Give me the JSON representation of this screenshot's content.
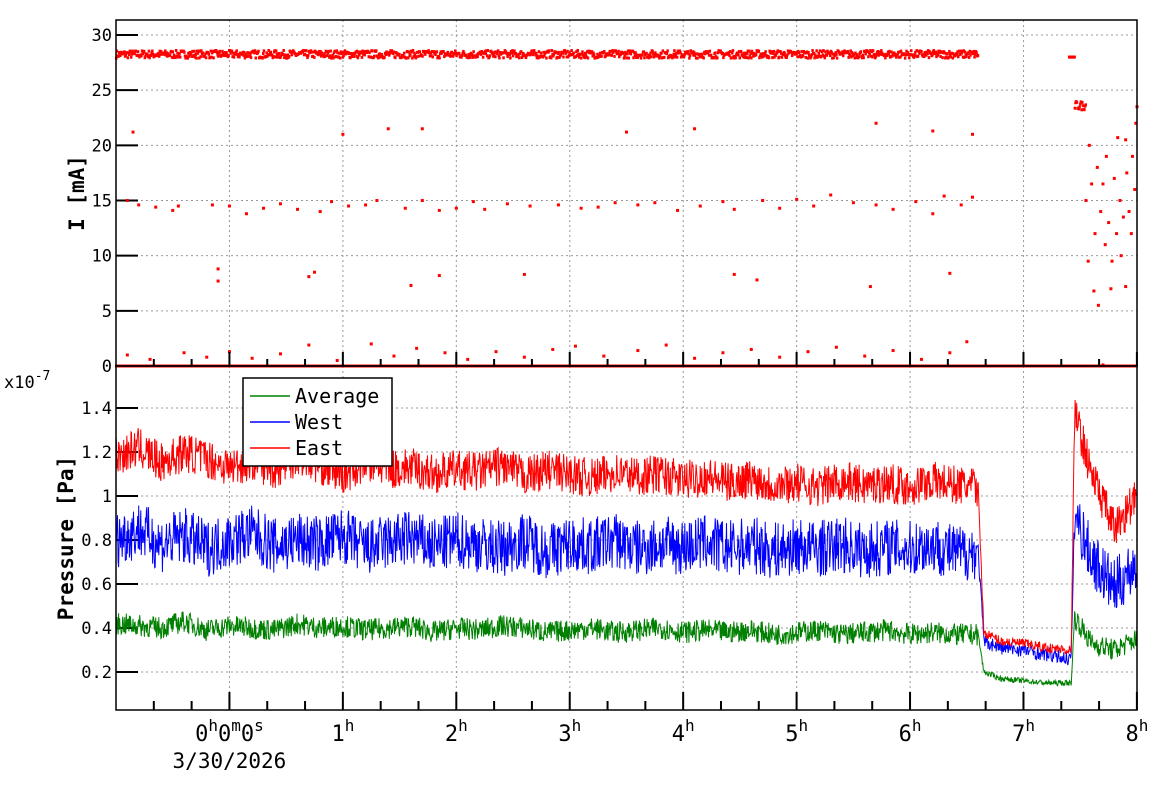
{
  "chart_data": [
    {
      "type": "scatter",
      "ylabel": "I [mA]",
      "ylim": [
        0,
        30
      ],
      "yticks": [
        "0",
        "5",
        "10",
        "15",
        "20",
        "25",
        "30"
      ],
      "grid": true,
      "color": "#ff0000",
      "bands": [
        {
          "x0": -1,
          "x1": 6.6,
          "y0": 27.9,
          "y1": 28.6
        },
        {
          "x0": 7.4,
          "x1": 7.45,
          "y0": 28,
          "y1": 28
        },
        {
          "x0": 7.45,
          "x1": 7.55,
          "y0": 23.2,
          "y1": 24
        },
        {
          "x0": -1,
          "x1": 8,
          "y0": 0,
          "y1": 0
        }
      ],
      "points": [
        [
          -0.85,
          21.2
        ],
        [
          1,
          21
        ],
        [
          1.4,
          21.5
        ],
        [
          1.7,
          21.5
        ],
        [
          3.5,
          21.2
        ],
        [
          4.1,
          21.5
        ],
        [
          5.7,
          22
        ],
        [
          6.2,
          21.3
        ],
        [
          6.55,
          21
        ],
        [
          -0.1,
          8.8
        ],
        [
          -0.1,
          7.7
        ],
        [
          0.75,
          8.5
        ],
        [
          1.85,
          8.2
        ],
        [
          2.6,
          8.3
        ],
        [
          4.45,
          8.3
        ],
        [
          4.65,
          7.8
        ],
        [
          5.65,
          7.2
        ],
        [
          6.35,
          8.4
        ],
        [
          1.6,
          7.3
        ],
        [
          0.7,
          8.1
        ],
        [
          -0.9,
          15
        ],
        [
          -0.8,
          14.6
        ],
        [
          -0.65,
          14.4
        ],
        [
          -0.5,
          14.1
        ],
        [
          -0.45,
          14.5
        ],
        [
          -0.15,
          14.6
        ],
        [
          0,
          14.5
        ],
        [
          0.15,
          13.8
        ],
        [
          0.3,
          14.3
        ],
        [
          0.45,
          14.7
        ],
        [
          0.6,
          14.2
        ],
        [
          0.8,
          14
        ],
        [
          0.9,
          14.9
        ],
        [
          1.05,
          14.5
        ],
        [
          1.2,
          14.6
        ],
        [
          1.3,
          15
        ],
        [
          1.55,
          14.3
        ],
        [
          1.7,
          15
        ],
        [
          1.85,
          14.1
        ],
        [
          2,
          14.3
        ],
        [
          2.15,
          14.9
        ],
        [
          2.25,
          14.2
        ],
        [
          2.45,
          14.7
        ],
        [
          2.65,
          14.5
        ],
        [
          2.9,
          14.6
        ],
        [
          3.1,
          14.3
        ],
        [
          3.25,
          14.4
        ],
        [
          3.4,
          14.8
        ],
        [
          3.6,
          14.6
        ],
        [
          3.75,
          14.8
        ],
        [
          3.95,
          14.1
        ],
        [
          4.15,
          14.5
        ],
        [
          4.35,
          14.9
        ],
        [
          4.45,
          14.2
        ],
        [
          4.7,
          15
        ],
        [
          4.85,
          14.3
        ],
        [
          5,
          15.1
        ],
        [
          5.15,
          14.5
        ],
        [
          5.3,
          15.5
        ],
        [
          5.5,
          14.8
        ],
        [
          5.7,
          14.6
        ],
        [
          5.85,
          14.2
        ],
        [
          6.05,
          14.9
        ],
        [
          6.2,
          13.8
        ],
        [
          6.3,
          15.4
        ],
        [
          6.45,
          14.6
        ],
        [
          6.55,
          15.3
        ],
        [
          -0.9,
          1
        ],
        [
          -0.7,
          0.6
        ],
        [
          -0.4,
          1.2
        ],
        [
          -0.2,
          0.8
        ],
        [
          0,
          1.3
        ],
        [
          0.2,
          0.7
        ],
        [
          0.45,
          1.1
        ],
        [
          0.7,
          1.9
        ],
        [
          0.95,
          0.5
        ],
        [
          1.25,
          2
        ],
        [
          1.45,
          0.9
        ],
        [
          1.65,
          1.6
        ],
        [
          1.9,
          1.2
        ],
        [
          2.1,
          0.6
        ],
        [
          2.35,
          1.3
        ],
        [
          2.6,
          0.8
        ],
        [
          2.85,
          1.5
        ],
        [
          3.05,
          1.8
        ],
        [
          3.3,
          0.9
        ],
        [
          3.6,
          1.4
        ],
        [
          3.85,
          1.9
        ],
        [
          4.1,
          0.7
        ],
        [
          4.35,
          1.2
        ],
        [
          4.6,
          1.5
        ],
        [
          4.85,
          0.8
        ],
        [
          5.1,
          1.3
        ],
        [
          5.35,
          1.7
        ],
        [
          5.6,
          0.9
        ],
        [
          5.85,
          1.4
        ],
        [
          6.1,
          0.6
        ],
        [
          6.35,
          1.2
        ],
        [
          6.5,
          2.2
        ],
        [
          7.55,
          15
        ],
        [
          7.57,
          9.5
        ],
        [
          7.6,
          16.5
        ],
        [
          7.62,
          6.8
        ],
        [
          7.63,
          12
        ],
        [
          7.65,
          18
        ],
        [
          7.66,
          5.5
        ],
        [
          7.68,
          14
        ],
        [
          7.7,
          16.5
        ],
        [
          7.72,
          11
        ],
        [
          7.73,
          19
        ],
        [
          7.75,
          13
        ],
        [
          7.77,
          7
        ],
        [
          7.78,
          9.5
        ],
        [
          7.8,
          17
        ],
        [
          7.82,
          12
        ],
        [
          7.83,
          20.7
        ],
        [
          7.85,
          15
        ],
        [
          7.86,
          10
        ],
        [
          7.88,
          13.5
        ],
        [
          7.9,
          7.2
        ],
        [
          7.91,
          17.5
        ],
        [
          7.93,
          14
        ],
        [
          7.95,
          12
        ],
        [
          7.96,
          19
        ],
        [
          7.98,
          16
        ],
        [
          7.99,
          22
        ],
        [
          8,
          23.5
        ],
        [
          7.9,
          20.5
        ],
        [
          7.58,
          20
        ],
        [
          7.7,
          0.1
        ]
      ]
    },
    {
      "type": "line",
      "ylabel": "Pressure [Pa]",
      "yscale_label": "x10",
      "yscale_exp": "-7",
      "ylim": [
        0.03,
        1.59
      ],
      "yticks": [
        "0.2",
        "0.4",
        "0.6",
        "0.8",
        "1",
        "1.2",
        "1.4"
      ],
      "grid": true,
      "xlim": [
        -1,
        8
      ],
      "xticks": [
        "0h0m0s",
        "1h",
        "2h",
        "3h",
        "4h",
        "5h",
        "6h",
        "7h",
        "8h"
      ],
      "xdate": "3/30/2026",
      "legend_position": "top-left",
      "x": [
        -1,
        -0.8,
        -0.6,
        -0.4,
        -0.2,
        0,
        0.2,
        0.4,
        0.6,
        0.8,
        1.0,
        1.2,
        1.4,
        1.6,
        1.8,
        2.0,
        2.2,
        2.4,
        2.6,
        2.8,
        3.0,
        3.2,
        3.4,
        3.6,
        3.8,
        4.0,
        4.2,
        4.4,
        4.6,
        4.8,
        5.0,
        5.2,
        5.4,
        5.6,
        5.8,
        6.0,
        6.2,
        6.4,
        6.6,
        6.65,
        6.8,
        7.0,
        7.2,
        7.4,
        7.42,
        7.45,
        7.6,
        7.8,
        8.0
      ],
      "series": [
        {
          "name": "Average",
          "color": "#008000",
          "values": [
            0.42,
            0.41,
            0.4,
            0.43,
            0.39,
            0.41,
            0.4,
            0.39,
            0.42,
            0.4,
            0.41,
            0.39,
            0.4,
            0.41,
            0.38,
            0.4,
            0.39,
            0.41,
            0.4,
            0.38,
            0.39,
            0.4,
            0.38,
            0.39,
            0.4,
            0.38,
            0.39,
            0.38,
            0.39,
            0.37,
            0.38,
            0.39,
            0.37,
            0.38,
            0.39,
            0.37,
            0.38,
            0.37,
            0.37,
            0.2,
            0.17,
            0.16,
            0.15,
            0.15,
            0.15,
            0.45,
            0.33,
            0.3,
            0.35
          ]
        },
        {
          "name": "West",
          "color": "#0000ff",
          "values": [
            0.8,
            0.85,
            0.78,
            0.82,
            0.76,
            0.8,
            0.83,
            0.77,
            0.8,
            0.78,
            0.82,
            0.76,
            0.79,
            0.81,
            0.77,
            0.8,
            0.78,
            0.76,
            0.8,
            0.75,
            0.78,
            0.77,
            0.8,
            0.76,
            0.78,
            0.77,
            0.79,
            0.76,
            0.78,
            0.75,
            0.77,
            0.76,
            0.78,
            0.75,
            0.77,
            0.76,
            0.78,
            0.74,
            0.75,
            0.34,
            0.31,
            0.3,
            0.28,
            0.26,
            0.26,
            0.92,
            0.72,
            0.58,
            0.7
          ]
        },
        {
          "name": "East",
          "color": "#ff0000",
          "values": [
            1.18,
            1.22,
            1.15,
            1.2,
            1.17,
            1.13,
            1.16,
            1.12,
            1.18,
            1.14,
            1.1,
            1.15,
            1.12,
            1.13,
            1.1,
            1.12,
            1.11,
            1.14,
            1.09,
            1.12,
            1.1,
            1.08,
            1.11,
            1.09,
            1.1,
            1.07,
            1.09,
            1.06,
            1.08,
            1.05,
            1.06,
            1.04,
            1.07,
            1.05,
            1.06,
            1.04,
            1.07,
            1.05,
            1.04,
            0.38,
            0.34,
            0.33,
            0.31,
            0.3,
            0.3,
            1.38,
            1.1,
            0.85,
            1.0
          ]
        }
      ]
    }
  ]
}
